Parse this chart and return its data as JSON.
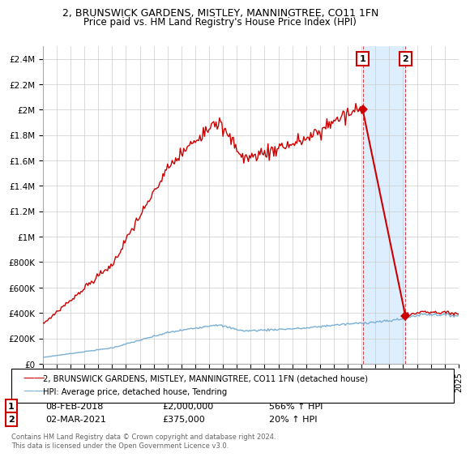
{
  "title": "2, BRUNSWICK GARDENS, MISTLEY, MANNINGTREE, CO11 1FN",
  "subtitle": "Price paid vs. HM Land Registry's House Price Index (HPI)",
  "hpi_label": "HPI: Average price, detached house, Tendring",
  "property_label": "2, BRUNSWICK GARDENS, MISTLEY, MANNINGTREE, CO11 1FN (detached house)",
  "footnote": "Contains HM Land Registry data © Crown copyright and database right 2024.\nThis data is licensed under the Open Government Licence v3.0.",
  "annotation1": {
    "num": "1",
    "date": "08-FEB-2018",
    "price": "£2,000,000",
    "hpi": "566% ↑ HPI"
  },
  "annotation2": {
    "num": "2",
    "date": "02-MAR-2021",
    "price": "£375,000",
    "hpi": "20% ↑ HPI"
  },
  "ylim": [
    0,
    2500000
  ],
  "yticks": [
    0,
    200000,
    400000,
    600000,
    800000,
    1000000,
    1200000,
    1400000,
    1600000,
    1800000,
    2000000,
    2200000,
    2400000
  ],
  "ytick_labels": [
    "£0",
    "£200K",
    "£400K",
    "£600K",
    "£800K",
    "£1M",
    "£1.2M",
    "£1.4M",
    "£1.6M",
    "£1.8M",
    "£2M",
    "£2.2M",
    "£2.4M"
  ],
  "hpi_color": "#7ab0d4",
  "property_color": "#cc0000",
  "annotation_color": "#cc0000",
  "highlight_bg": "#ddeeff",
  "vline_color": "#cc0000",
  "grid_color": "#cccccc",
  "bg_color": "#ffffff",
  "sale1_year": 2018.083,
  "sale1_price": 2000000,
  "sale2_year": 2021.167,
  "sale2_price": 375000
}
